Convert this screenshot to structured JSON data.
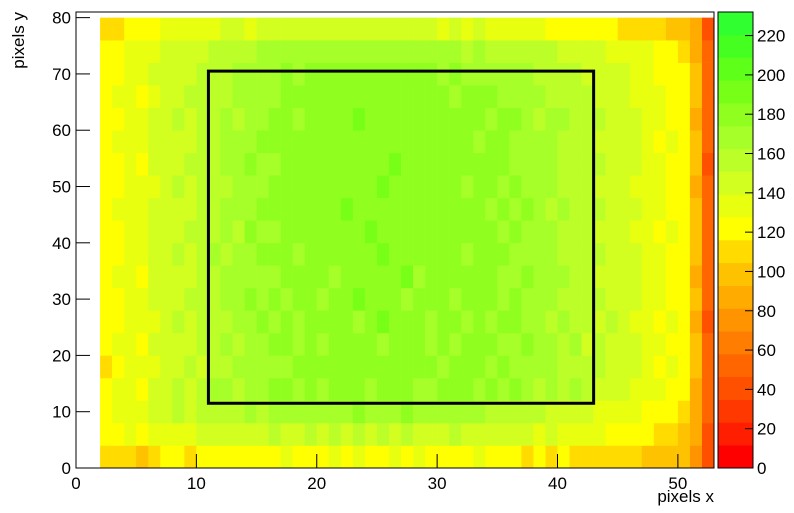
{
  "chart_data": {
    "type": "heatmap",
    "x_label": "pixels x",
    "y_label": "pixels y",
    "xlim": [
      0,
      53
    ],
    "ylim": [
      0,
      81
    ],
    "zlim": [
      0,
      232
    ],
    "xticks": [
      0,
      10,
      20,
      30,
      40,
      50
    ],
    "yticks": [
      0,
      10,
      20,
      30,
      40,
      50,
      60,
      70,
      80
    ],
    "zticks": [
      0,
      20,
      40,
      60,
      80,
      100,
      120,
      140,
      160,
      180,
      200,
      220
    ],
    "palette": [
      "#ff0000",
      "#ff1e00",
      "#ff3800",
      "#ff5000",
      "#ff6600",
      "#ff7d00",
      "#ff9400",
      "#ffab00",
      "#ffc200",
      "#ffdb00",
      "#ffff00",
      "#e8ff10",
      "#d2ff20",
      "#bcff28",
      "#a6ff28",
      "#90ff20",
      "#78ff18",
      "#5eff18",
      "#44ff20",
      "#30ff30"
    ],
    "xbins": [
      2,
      3,
      4,
      5,
      6,
      7,
      8,
      9,
      10,
      11,
      12,
      13,
      14,
      15,
      16,
      17,
      18,
      19,
      20,
      21,
      22,
      23,
      24,
      25,
      26,
      27,
      28,
      29,
      30,
      31,
      32,
      33,
      34,
      35,
      36,
      37,
      38,
      39,
      40,
      41,
      42,
      43,
      44,
      45,
      46,
      47,
      48,
      49,
      50,
      51,
      52,
      53
    ],
    "ybins": [
      0,
      4,
      8,
      12,
      16,
      20,
      24,
      28,
      32,
      36,
      40,
      44,
      48,
      52,
      56,
      60,
      64,
      68,
      72,
      76,
      80
    ],
    "z": [
      [
        110,
        105,
        112,
        100,
        115,
        118,
        120,
        110,
        122,
        118,
        125,
        120,
        118,
        125,
        122,
        128,
        120,
        125,
        118,
        130,
        122,
        128,
        120,
        125,
        130,
        122,
        128,
        118,
        125,
        120,
        122,
        130,
        118,
        125,
        120,
        115,
        120,
        112,
        118,
        110,
        115,
        108,
        112,
        105,
        110,
        102,
        100,
        98,
        95,
        80,
        40
      ],
      [
        120,
        125,
        128,
        122,
        132,
        135,
        138,
        132,
        140,
        145,
        148,
        142,
        150,
        146,
        152,
        150,
        145,
        155,
        148,
        152,
        150,
        156,
        148,
        152,
        150,
        155,
        146,
        150,
        148,
        152,
        145,
        150,
        148,
        142,
        146,
        140,
        138,
        142,
        135,
        132,
        130,
        128,
        125,
        122,
        120,
        118,
        115,
        110,
        100,
        85,
        45
      ],
      [
        118,
        128,
        135,
        130,
        142,
        148,
        152,
        150,
        158,
        162,
        160,
        158,
        165,
        162,
        168,
        170,
        165,
        172,
        168,
        170,
        172,
        175,
        168,
        172,
        170,
        174,
        166,
        170,
        168,
        172,
        165,
        168,
        162,
        160,
        162,
        155,
        152,
        150,
        148,
        145,
        140,
        138,
        135,
        130,
        128,
        125,
        122,
        118,
        105,
        90,
        48
      ],
      [
        122,
        130,
        138,
        126,
        145,
        150,
        155,
        146,
        160,
        165,
        168,
        160,
        172,
        165,
        175,
        178,
        168,
        182,
        170,
        178,
        175,
        184,
        170,
        182,
        176,
        180,
        172,
        168,
        180,
        174,
        182,
        170,
        178,
        168,
        176,
        170,
        162,
        172,
        158,
        165,
        152,
        148,
        150,
        142,
        138,
        132,
        128,
        125,
        118,
        92,
        52
      ],
      [
        115,
        124,
        130,
        132,
        138,
        142,
        148,
        152,
        150,
        158,
        162,
        166,
        168,
        172,
        170,
        172,
        176,
        174,
        178,
        182,
        174,
        180,
        178,
        176,
        184,
        174,
        180,
        176,
        172,
        178,
        176,
        182,
        170,
        178,
        166,
        172,
        168,
        165,
        162,
        158,
        158,
        152,
        145,
        148,
        140,
        136,
        125,
        130,
        122,
        96,
        48
      ],
      [
        120,
        128,
        134,
        125,
        142,
        148,
        145,
        150,
        158,
        155,
        166,
        160,
        172,
        166,
        175,
        178,
        172,
        180,
        168,
        184,
        178,
        176,
        185,
        172,
        178,
        182,
        175,
        172,
        180,
        170,
        178,
        174,
        180,
        172,
        168,
        176,
        165,
        168,
        160,
        164,
        150,
        155,
        148,
        142,
        146,
        130,
        132,
        124,
        118,
        94,
        55
      ],
      [
        124,
        120,
        136,
        130,
        138,
        146,
        152,
        146,
        154,
        162,
        162,
        168,
        166,
        174,
        170,
        180,
        168,
        176,
        175,
        178,
        182,
        172,
        178,
        186,
        174,
        176,
        184,
        170,
        176,
        178,
        172,
        180,
        168,
        176,
        174,
        170,
        170,
        162,
        165,
        156,
        158,
        148,
        152,
        145,
        138,
        138,
        126,
        128,
        120,
        90,
        46
      ],
      [
        116,
        126,
        128,
        134,
        144,
        140,
        150,
        155,
        152,
        160,
        168,
        164,
        174,
        168,
        178,
        172,
        178,
        182,
        170,
        176,
        178,
        186,
        176,
        180,
        182,
        172,
        178,
        184,
        174,
        172,
        180,
        176,
        174,
        170,
        178,
        168,
        164,
        172,
        158,
        162,
        152,
        154,
        146,
        148,
        142,
        134,
        130,
        122,
        124,
        98,
        52
      ],
      [
        122,
        130,
        132,
        126,
        140,
        150,
        146,
        148,
        160,
        158,
        164,
        166,
        170,
        172,
        168,
        176,
        174,
        178,
        184,
        172,
        180,
        178,
        182,
        176,
        178,
        186,
        170,
        178,
        182,
        176,
        174,
        180,
        178,
        168,
        172,
        176,
        166,
        168,
        164,
        158,
        156,
        150,
        150,
        144,
        140,
        136,
        128,
        126,
        118,
        92,
        50
      ],
      [
        118,
        124,
        136,
        130,
        146,
        144,
        152,
        150,
        156,
        164,
        160,
        170,
        168,
        176,
        174,
        178,
        172,
        184,
        176,
        180,
        176,
        182,
        180,
        186,
        174,
        182,
        178,
        176,
        180,
        184,
        172,
        178,
        174,
        176,
        170,
        172,
        170,
        164,
        160,
        162,
        152,
        152,
        148,
        146,
        142,
        132,
        132,
        122,
        120,
        95,
        54
      ],
      [
        126,
        122,
        130,
        134,
        140,
        148,
        150,
        154,
        152,
        160,
        166,
        162,
        176,
        170,
        172,
        180,
        176,
        178,
        180,
        184,
        182,
        178,
        186,
        178,
        182,
        178,
        184,
        180,
        176,
        178,
        180,
        174,
        180,
        172,
        176,
        168,
        166,
        168,
        162,
        156,
        158,
        148,
        150,
        142,
        138,
        138,
        126,
        128,
        122,
        93,
        48
      ],
      [
        120,
        128,
        134,
        128,
        144,
        146,
        148,
        150,
        158,
        158,
        168,
        166,
        170,
        174,
        178,
        176,
        180,
        182,
        176,
        180,
        186,
        184,
        176,
        182,
        180,
        184,
        176,
        182,
        178,
        174,
        176,
        182,
        172,
        178,
        168,
        174,
        170,
        162,
        164,
        160,
        154,
        154,
        146,
        148,
        144,
        134,
        130,
        124,
        118,
        97,
        52
      ],
      [
        118,
        126,
        130,
        132,
        138,
        150,
        152,
        146,
        156,
        162,
        162,
        170,
        168,
        172,
        176,
        182,
        174,
        180,
        184,
        178,
        180,
        176,
        182,
        186,
        178,
        180,
        182,
        174,
        184,
        180,
        172,
        178,
        176,
        170,
        176,
        170,
        164,
        170,
        158,
        162,
        156,
        150,
        150,
        144,
        138,
        136,
        128,
        126,
        120,
        91,
        50
      ],
      [
        124,
        120,
        138,
        126,
        146,
        144,
        150,
        152,
        154,
        160,
        166,
        164,
        174,
        168,
        172,
        178,
        178,
        176,
        180,
        182,
        176,
        184,
        180,
        178,
        186,
        176,
        180,
        178,
        176,
        182,
        178,
        176,
        178,
        174,
        170,
        172,
        168,
        164,
        162,
        158,
        152,
        152,
        148,
        146,
        142,
        132,
        132,
        122,
        124,
        96,
        46
      ],
      [
        116,
        130,
        132,
        134,
        140,
        148,
        146,
        150,
        160,
        156,
        164,
        168,
        170,
        176,
        174,
        174,
        180,
        182,
        176,
        178,
        184,
        180,
        176,
        182,
        180,
        182,
        174,
        184,
        180,
        176,
        182,
        172,
        174,
        178,
        172,
        168,
        170,
        166,
        160,
        162,
        156,
        148,
        150,
        142,
        140,
        138,
        126,
        128,
        118,
        94,
        54
      ],
      [
        122,
        124,
        134,
        130,
        142,
        146,
        152,
        148,
        152,
        162,
        168,
        160,
        168,
        170,
        178,
        180,
        172,
        178,
        184,
        176,
        178,
        186,
        182,
        176,
        178,
        184,
        180,
        176,
        174,
        182,
        176,
        180,
        170,
        176,
        174,
        172,
        162,
        168,
        164,
        156,
        152,
        154,
        146,
        148,
        144,
        130,
        130,
        124,
        120,
        92,
        50
      ],
      [
        120,
        128,
        128,
        126,
        138,
        144,
        148,
        154,
        156,
        158,
        160,
        166,
        172,
        168,
        170,
        176,
        176,
        174,
        178,
        180,
        182,
        176,
        180,
        184,
        176,
        178,
        176,
        182,
        178,
        172,
        180,
        174,
        178,
        168,
        170,
        170,
        168,
        162,
        158,
        160,
        154,
        150,
        148,
        144,
        138,
        136,
        128,
        122,
        122,
        97,
        48
      ],
      [
        118,
        126,
        132,
        130,
        140,
        146,
        150,
        148,
        154,
        160,
        162,
        164,
        168,
        170,
        172,
        174,
        172,
        176,
        174,
        178,
        176,
        180,
        174,
        178,
        176,
        176,
        174,
        178,
        172,
        176,
        170,
        172,
        168,
        170,
        166,
        164,
        162,
        160,
        156,
        154,
        150,
        146,
        144,
        140,
        138,
        132,
        126,
        124,
        118,
        94,
        52
      ],
      [
        120,
        124,
        130,
        128,
        136,
        142,
        146,
        144,
        150,
        152,
        156,
        160,
        158,
        164,
        166,
        168,
        164,
        170,
        166,
        168,
        170,
        172,
        166,
        170,
        168,
        172,
        166,
        168,
        164,
        170,
        162,
        166,
        160,
        162,
        158,
        156,
        154,
        152,
        150,
        146,
        142,
        140,
        138,
        134,
        130,
        128,
        122,
        120,
        114,
        90,
        50
      ],
      [
        112,
        115,
        120,
        118,
        125,
        128,
        132,
        130,
        135,
        138,
        140,
        142,
        138,
        145,
        142,
        148,
        140,
        146,
        142,
        148,
        144,
        150,
        140,
        146,
        142,
        148,
        140,
        145,
        138,
        142,
        136,
        140,
        134,
        136,
        130,
        132,
        128,
        126,
        124,
        120,
        122,
        118,
        116,
        112,
        110,
        108,
        105,
        102,
        100,
        85,
        45
      ]
    ],
    "box": {
      "x0": 11,
      "x1": 43,
      "y0": 11.5,
      "y1": 70.5
    }
  }
}
